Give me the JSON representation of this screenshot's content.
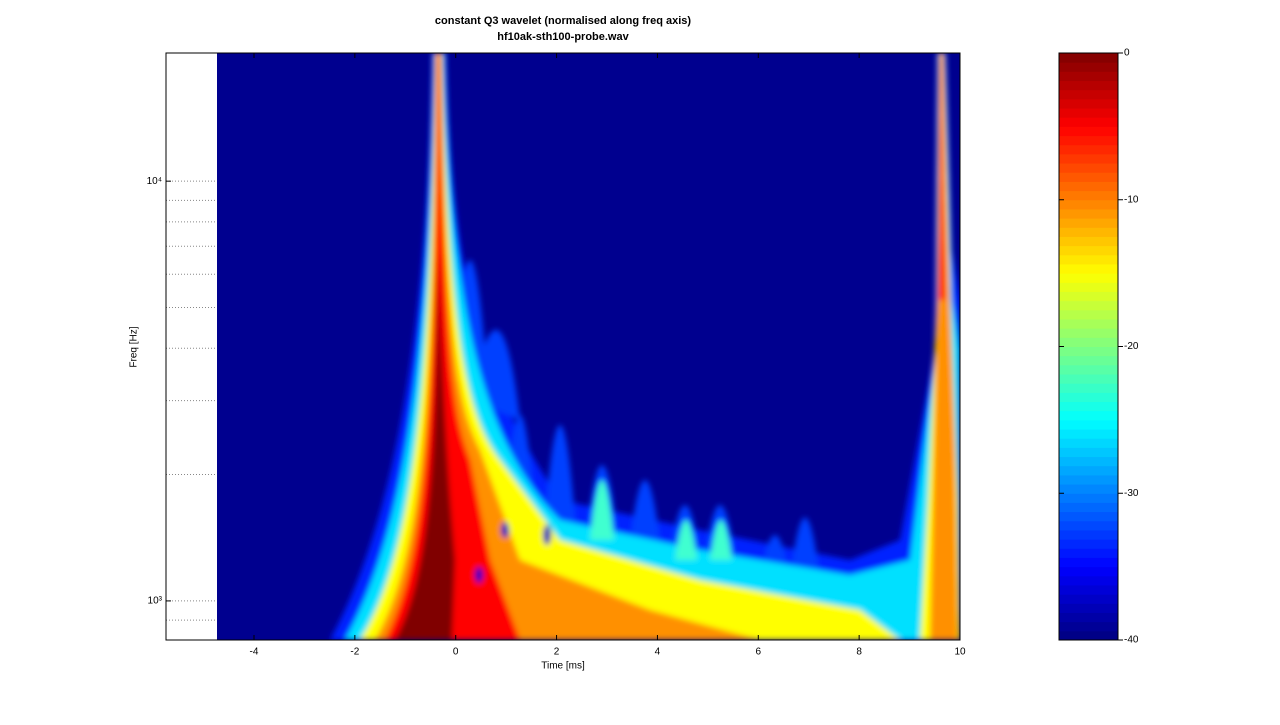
{
  "chart_data": {
    "type": "heatmap",
    "title": "constant Q3 wavelet (normalised along freq axis)",
    "subtitle": "hf10ak-sth100-probe.wav",
    "x_label": "Time [ms]",
    "y_label": "Freq [Hz]",
    "xlim": [
      -5.745,
      10
    ],
    "xticks": [
      -4,
      -2,
      0,
      2,
      4,
      6,
      8,
      10
    ],
    "ylim": [
      807,
      20200
    ],
    "y_scale": "log",
    "yticks": [
      {
        "value": 1000,
        "label": "10³"
      },
      {
        "value": 10000,
        "label": "10⁴"
      }
    ],
    "minor_yticks": [
      900,
      2000,
      3000,
      4000,
      5000,
      6000,
      7000,
      8000,
      9000
    ],
    "grid": true,
    "colormap": "jet",
    "clim": [
      -40,
      0
    ],
    "cticks": [
      -40,
      -30,
      -20,
      -10,
      0
    ]
  }
}
